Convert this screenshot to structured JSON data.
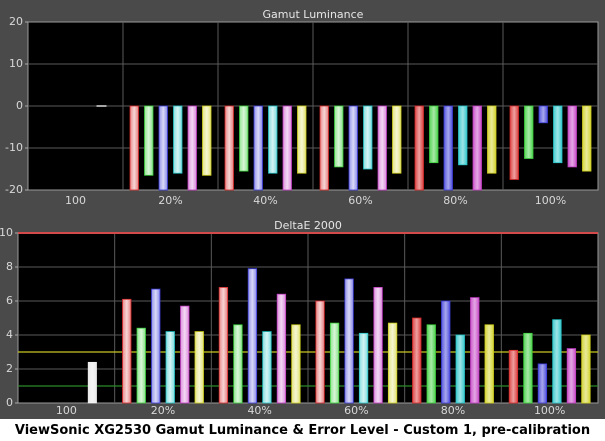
{
  "caption": "ViewSonic XG2530 Gamut Luminance & Error Level - Custom 1, pre-calibration",
  "colors": {
    "white": "#e8e8e8",
    "red": "#d62a2a",
    "green": "#3ccf3c",
    "blue": "#3c3cd8",
    "cyan": "#26c4c8",
    "magenta": "#c23cc2",
    "yellow": "#cfcf1f",
    "refline_red": "#d44a4a",
    "refline_yellow": "#c8c820",
    "refline_green": "#2a8a2a"
  },
  "chart_data": [
    {
      "type": "bar",
      "title": "Gamut Luminance",
      "categories": [
        "100",
        "20%",
        "40%",
        "60%",
        "80%",
        "100%"
      ],
      "series_colors": [
        "red",
        "green",
        "blue",
        "cyan",
        "magenta",
        "yellow"
      ],
      "ylim": [
        -20,
        20
      ],
      "yticks": [
        -20,
        -10,
        0,
        10,
        20
      ],
      "grid": true,
      "white_values": [
        0,
        null,
        null,
        null,
        null,
        null
      ],
      "values": [
        [
          null,
          null,
          null,
          null,
          null,
          null
        ],
        [
          -20,
          -16.5,
          -20,
          -16,
          -20,
          -16.5
        ],
        [
          -20,
          -15.5,
          -20,
          -16,
          -20,
          -16
        ],
        [
          -20,
          -14.5,
          -20,
          -15,
          -20,
          -16
        ],
        [
          -20,
          -13.5,
          -20,
          -14,
          -20,
          -16
        ],
        [
          -17.5,
          -12.5,
          -4,
          -13.5,
          -14.5,
          -15.5
        ]
      ]
    },
    {
      "type": "bar",
      "title": "DeltaE 2000",
      "categories": [
        "100",
        "20%",
        "40%",
        "60%",
        "80%",
        "100%"
      ],
      "series_colors": [
        "red",
        "green",
        "blue",
        "cyan",
        "magenta",
        "yellow"
      ],
      "ylim": [
        0,
        10
      ],
      "yticks": [
        0,
        2,
        4,
        6,
        8,
        10
      ],
      "grid": true,
      "reference_lines": [
        {
          "value": 10,
          "color": "refline_red"
        },
        {
          "value": 3,
          "color": "refline_yellow"
        },
        {
          "value": 1,
          "color": "refline_green"
        }
      ],
      "white_values": [
        2.4,
        null,
        null,
        null,
        null,
        null
      ],
      "values": [
        [
          null,
          null,
          null,
          null,
          null,
          null
        ],
        [
          6.1,
          4.4,
          6.7,
          4.2,
          5.7,
          4.2
        ],
        [
          6.8,
          4.6,
          7.9,
          4.2,
          6.4,
          4.6
        ],
        [
          6.0,
          4.7,
          7.3,
          4.1,
          6.8,
          4.7
        ],
        [
          5.0,
          4.6,
          6.0,
          4.0,
          6.2,
          4.6
        ],
        [
          3.1,
          4.1,
          2.3,
          4.9,
          3.2,
          4.0
        ]
      ]
    }
  ]
}
